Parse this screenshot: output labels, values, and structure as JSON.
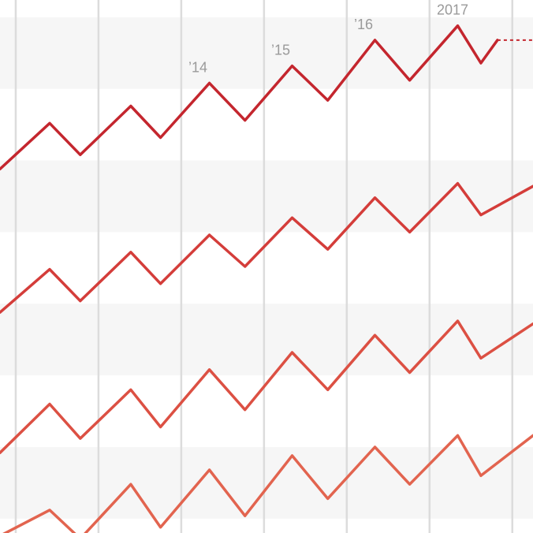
{
  "chart_data": {
    "type": "line",
    "title": "",
    "xlabel": "",
    "ylabel": "",
    "grid": true,
    "year_labels": [
      {
        "label": "’14",
        "x": 2014.0
      },
      {
        "label": "’15",
        "x": 2015.0
      },
      {
        "label": "’16",
        "x": 2016.0
      },
      {
        "label": "2017",
        "x": 2017.0
      }
    ],
    "xlim": [
      2011.78,
      2018.22
    ],
    "vlines": [
      2011.97,
      2012.97,
      2013.97,
      2014.97,
      2015.97,
      2016.97,
      2017.97
    ],
    "bands": [
      [
        7.75,
        9.0
      ],
      [
        5.25,
        6.5
      ],
      [
        2.75,
        4.0
      ],
      [
        0.25,
        1.5
      ]
    ],
    "ylim": [
      0,
      9.3
    ],
    "series": [
      {
        "color": "#c4262e",
        "peak_x": [
          2012.38,
          2013.36,
          2014.31,
          2015.31,
          2016.31,
          2017.31
        ],
        "peak_y": [
          7.15,
          7.45,
          7.85,
          8.15,
          8.6,
          8.85
        ],
        "trough_x": [
          2011.78,
          2012.75,
          2013.72,
          2014.74,
          2015.74,
          2016.73,
          2017.59
        ],
        "trough_y": [
          6.35,
          6.6,
          6.9,
          7.2,
          7.55,
          7.9,
          8.2
        ],
        "end_x": 2017.79,
        "end_y": 8.6,
        "forecast_end_x": 2018.22,
        "forecast_end_y": 8.6
      },
      {
        "color": "#d43d3a",
        "peak_x": [
          2012.38,
          2013.36,
          2014.31,
          2015.31,
          2016.31,
          2017.31
        ],
        "peak_y": [
          4.6,
          4.9,
          5.2,
          5.5,
          5.85,
          6.1
        ],
        "trough_x": [
          2011.78,
          2012.75,
          2013.72,
          2014.74,
          2015.74,
          2016.73,
          2017.59
        ],
        "trough_y": [
          3.85,
          4.05,
          4.35,
          4.65,
          4.95,
          5.25,
          5.55
        ],
        "end_x": 2018.22,
        "end_y": 6.05
      },
      {
        "color": "#dc5043",
        "peak_x": [
          2012.38,
          2013.36,
          2014.31,
          2015.31,
          2016.31,
          2017.31
        ],
        "peak_y": [
          2.25,
          2.5,
          2.85,
          3.15,
          3.45,
          3.7
        ],
        "trough_x": [
          2011.78,
          2012.75,
          2013.72,
          2014.74,
          2015.74,
          2016.73,
          2017.59
        ],
        "trough_y": [
          1.4,
          1.65,
          1.85,
          2.15,
          2.5,
          2.8,
          3.05
        ],
        "end_x": 2018.22,
        "end_y": 3.65
      },
      {
        "color": "#e2644f",
        "peak_x": [
          2012.38,
          2013.36,
          2014.31,
          2015.31,
          2016.31,
          2017.31
        ],
        "peak_y": [
          0.4,
          0.85,
          1.1,
          1.35,
          1.5,
          1.7
        ],
        "trough_x": [
          2011.78,
          2012.75,
          2013.72,
          2014.74,
          2015.74,
          2016.73,
          2017.59
        ],
        "trough_y": [
          -0.05,
          -0.1,
          0.1,
          0.3,
          0.6,
          0.85,
          1.0
        ],
        "end_x": 2018.22,
        "end_y": 1.7
      }
    ]
  }
}
